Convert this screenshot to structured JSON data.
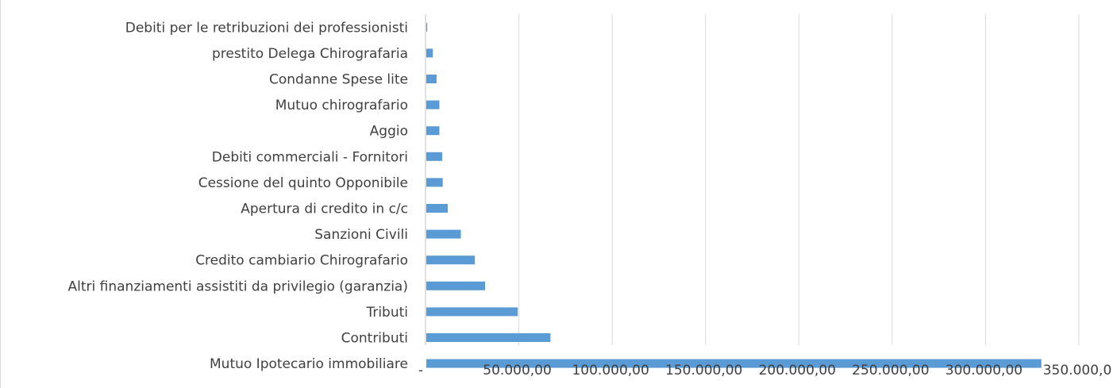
{
  "chart_data": {
    "type": "bar",
    "orientation": "horizontal",
    "categories": [
      "Debiti per le retribuzioni dei professionisti",
      "prestito Delega Chirografaria",
      "Condanne Spese lite",
      "Mutuo chirografario",
      "Aggio",
      "Debiti commerciali - Fornitori",
      "Cessione del quinto Opponibile",
      "Apertura di credito in c/c",
      "Sanzioni Civili",
      "Credito cambiario Chirografario",
      "Altri finanziamenti assistiti da privilegio (garanzia)",
      "Tributi",
      "Contributi",
      "Mutuo Ipotecario immobiliare"
    ],
    "values": [
      500,
      3500,
      5500,
      7000,
      7000,
      8500,
      8800,
      11500,
      18500,
      26000,
      31500,
      49000,
      66500,
      329500
    ],
    "xlim": [
      0,
      350000
    ],
    "xticks": [
      0,
      50000,
      100000,
      150000,
      200000,
      250000,
      300000,
      350000
    ],
    "xtick_labels": [
      "-",
      "50.000,00",
      "100.000,00",
      "150.000,00",
      "200.000,00",
      "250.000,00",
      "300.000,00",
      "350.000,0"
    ],
    "grid": "vertical",
    "bar_color": "#5b9bd5",
    "title": "",
    "xlabel": "",
    "ylabel": ""
  }
}
